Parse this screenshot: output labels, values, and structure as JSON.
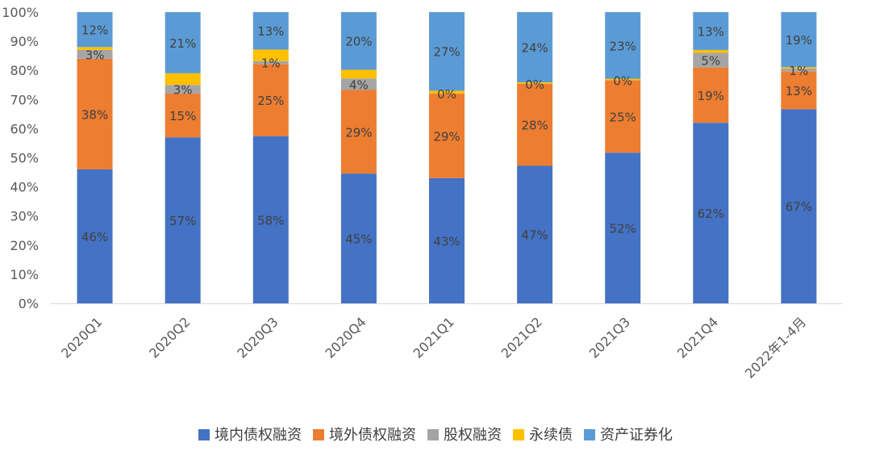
{
  "chart_data": {
    "type": "bar",
    "stacked": true,
    "percent": true,
    "categories": [
      "2020Q1",
      "2020Q2",
      "2020Q3",
      "2020Q4",
      "2021Q1",
      "2021Q2",
      "2021Q3",
      "2021Q4",
      "2022年1-4月"
    ],
    "series": [
      {
        "name": "境内债权融资",
        "color": "#4472C4",
        "values": [
          46,
          57,
          58,
          45,
          43,
          47,
          52,
          62,
          67
        ],
        "labels": [
          "46%",
          "57%",
          "58%",
          "45%",
          "43%",
          "47%",
          "52%",
          "62%",
          "67%"
        ]
      },
      {
        "name": "境外债权融资",
        "color": "#ED7D31",
        "values": [
          38,
          15,
          25,
          29,
          29,
          28,
          25,
          19,
          13
        ],
        "labels": [
          "38%",
          "15%",
          "25%",
          "29%",
          "29%",
          "28%",
          "25%",
          "19%",
          "13%"
        ]
      },
      {
        "name": "股权融资",
        "color": "#A5A5A5",
        "values": [
          3,
          3,
          1,
          4,
          0,
          0,
          0,
          5,
          1
        ],
        "labels": [
          "3%",
          "3%",
          "1%",
          "4%",
          "0%",
          "0%",
          "0%",
          "5%",
          "1%"
        ]
      },
      {
        "name": "永续债",
        "color": "#FFC000",
        "values": [
          1,
          4,
          4,
          3,
          1,
          0.5,
          0.5,
          1,
          0.5
        ],
        "labels": [
          "",
          "",
          "",
          "",
          "",
          "",
          "",
          "",
          ""
        ]
      },
      {
        "name": "资产证券化",
        "color": "#5B9BD5",
        "values": [
          12,
          21,
          13,
          20,
          27,
          24,
          23,
          13,
          19
        ],
        "labels": [
          "12%",
          "21%",
          "13%",
          "20%",
          "27%",
          "24%",
          "23%",
          "13%",
          "19%"
        ]
      }
    ],
    "yticks": [
      "0%",
      "10%",
      "20%",
      "30%",
      "40%",
      "50%",
      "60%",
      "70%",
      "80%",
      "90%",
      "100%"
    ],
    "ylim": [
      0,
      100
    ],
    "grid": false,
    "legend": "bottom"
  }
}
